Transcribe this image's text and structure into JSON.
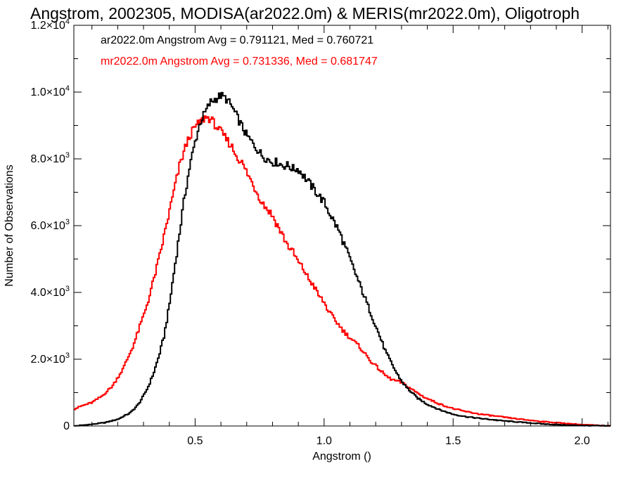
{
  "chart_data": {
    "type": "line",
    "title": "Angstrom, 2002305, MODISA(ar2022.0m) & MERIS(mr2022.0m), Oligotroph",
    "xlabel": "Angstrom ()",
    "ylabel": "Number of Observations",
    "xlim": [
      0.03,
      2.11
    ],
    "ylim": [
      0,
      12000
    ],
    "x_ticks": [
      0.5,
      1.0,
      1.5,
      2.0
    ],
    "x_tick_labels": [
      "0.5",
      "1.0",
      "1.5",
      "2.0"
    ],
    "y_ticks": [
      0,
      2000,
      4000,
      6000,
      8000,
      10000,
      12000
    ],
    "y_tick_labels": [
      {
        "mantissa": "0",
        "exp": ""
      },
      {
        "mantissa": "2.0×10",
        "exp": "3"
      },
      {
        "mantissa": "4.0×10",
        "exp": "3"
      },
      {
        "mantissa": "6.0×10",
        "exp": "3"
      },
      {
        "mantissa": "8.0×10",
        "exp": "3"
      },
      {
        "mantissa": "1.0×10",
        "exp": "4"
      },
      {
        "mantissa": "1.2×10",
        "exp": "4"
      }
    ],
    "annotations": [
      {
        "text": "ar2022.0m Angstrom Avg = 0.791121, Med = 0.760721",
        "color": "#000000"
      },
      {
        "text": "mr2022.0m Angstrom Avg = 0.731336, Med = 0.681747",
        "color": "#ff0000"
      }
    ],
    "grid": false,
    "series": [
      {
        "color": "#000000",
        "x": [
          0.03,
          0.1,
          0.15,
          0.2,
          0.25,
          0.28,
          0.3,
          0.32,
          0.34,
          0.36,
          0.38,
          0.4,
          0.42,
          0.44,
          0.46,
          0.48,
          0.5,
          0.52,
          0.54,
          0.56,
          0.58,
          0.6,
          0.62,
          0.64,
          0.66,
          0.68,
          0.7,
          0.72,
          0.74,
          0.76,
          0.78,
          0.8,
          0.82,
          0.84,
          0.86,
          0.88,
          0.9,
          0.92,
          0.94,
          0.96,
          0.98,
          1.0,
          1.02,
          1.04,
          1.06,
          1.08,
          1.1,
          1.12,
          1.14,
          1.16,
          1.18,
          1.2,
          1.22,
          1.24,
          1.26,
          1.28,
          1.3,
          1.32,
          1.34,
          1.36,
          1.38,
          1.4,
          1.45,
          1.5,
          1.55,
          1.6,
          1.65,
          1.7,
          1.75,
          1.8,
          1.85,
          1.9,
          1.95,
          2.0,
          2.05,
          2.11
        ],
        "values": [
          0,
          50,
          100,
          200,
          400,
          650,
          900,
          1200,
          1600,
          2100,
          2700,
          3600,
          4700,
          5800,
          6900,
          7800,
          8500,
          9100,
          9400,
          9700,
          9800,
          9900,
          9800,
          9600,
          9300,
          9000,
          8700,
          8500,
          8300,
          8100,
          8000,
          7900,
          7900,
          7800,
          7800,
          7700,
          7700,
          7500,
          7300,
          7100,
          6900,
          6700,
          6400,
          6100,
          5800,
          5400,
          5000,
          4600,
          4200,
          3800,
          3400,
          3000,
          2600,
          2200,
          1900,
          1600,
          1350,
          1150,
          1000,
          850,
          750,
          650,
          480,
          350,
          280,
          230,
          190,
          150,
          120,
          90,
          60,
          40,
          25,
          15,
          8,
          0
        ]
      },
      {
        "color": "#ff0000",
        "x": [
          0.03,
          0.06,
          0.1,
          0.14,
          0.18,
          0.22,
          0.26,
          0.3,
          0.32,
          0.34,
          0.36,
          0.38,
          0.4,
          0.42,
          0.44,
          0.46,
          0.48,
          0.5,
          0.52,
          0.54,
          0.56,
          0.58,
          0.6,
          0.62,
          0.64,
          0.66,
          0.68,
          0.7,
          0.72,
          0.74,
          0.76,
          0.78,
          0.8,
          0.82,
          0.84,
          0.86,
          0.88,
          0.9,
          0.92,
          0.94,
          0.96,
          0.98,
          1.0,
          1.02,
          1.04,
          1.06,
          1.08,
          1.1,
          1.12,
          1.14,
          1.16,
          1.18,
          1.2,
          1.22,
          1.24,
          1.26,
          1.28,
          1.3,
          1.32,
          1.34,
          1.36,
          1.38,
          1.4,
          1.45,
          1.5,
          1.55,
          1.6,
          1.65,
          1.7,
          1.75,
          1.8,
          1.85,
          1.9,
          1.95,
          2.0,
          2.05,
          2.11
        ],
        "values": [
          500,
          600,
          700,
          900,
          1200,
          1700,
          2400,
          3300,
          3800,
          4400,
          5000,
          5700,
          6400,
          7100,
          7800,
          8300,
          8700,
          8950,
          9100,
          9250,
          9200,
          9000,
          8800,
          8600,
          8400,
          8100,
          7900,
          7600,
          7300,
          7000,
          6700,
          6500,
          6300,
          6000,
          5700,
          5400,
          5200,
          4900,
          4700,
          4400,
          4200,
          3900,
          3700,
          3400,
          3200,
          3000,
          2800,
          2650,
          2500,
          2350,
          2150,
          1950,
          1800,
          1650,
          1500,
          1400,
          1350,
          1300,
          1200,
          1100,
          1000,
          900,
          820,
          650,
          520,
          430,
          360,
          310,
          260,
          210,
          170,
          130,
          100,
          70,
          40,
          20,
          0
        ]
      }
    ]
  }
}
